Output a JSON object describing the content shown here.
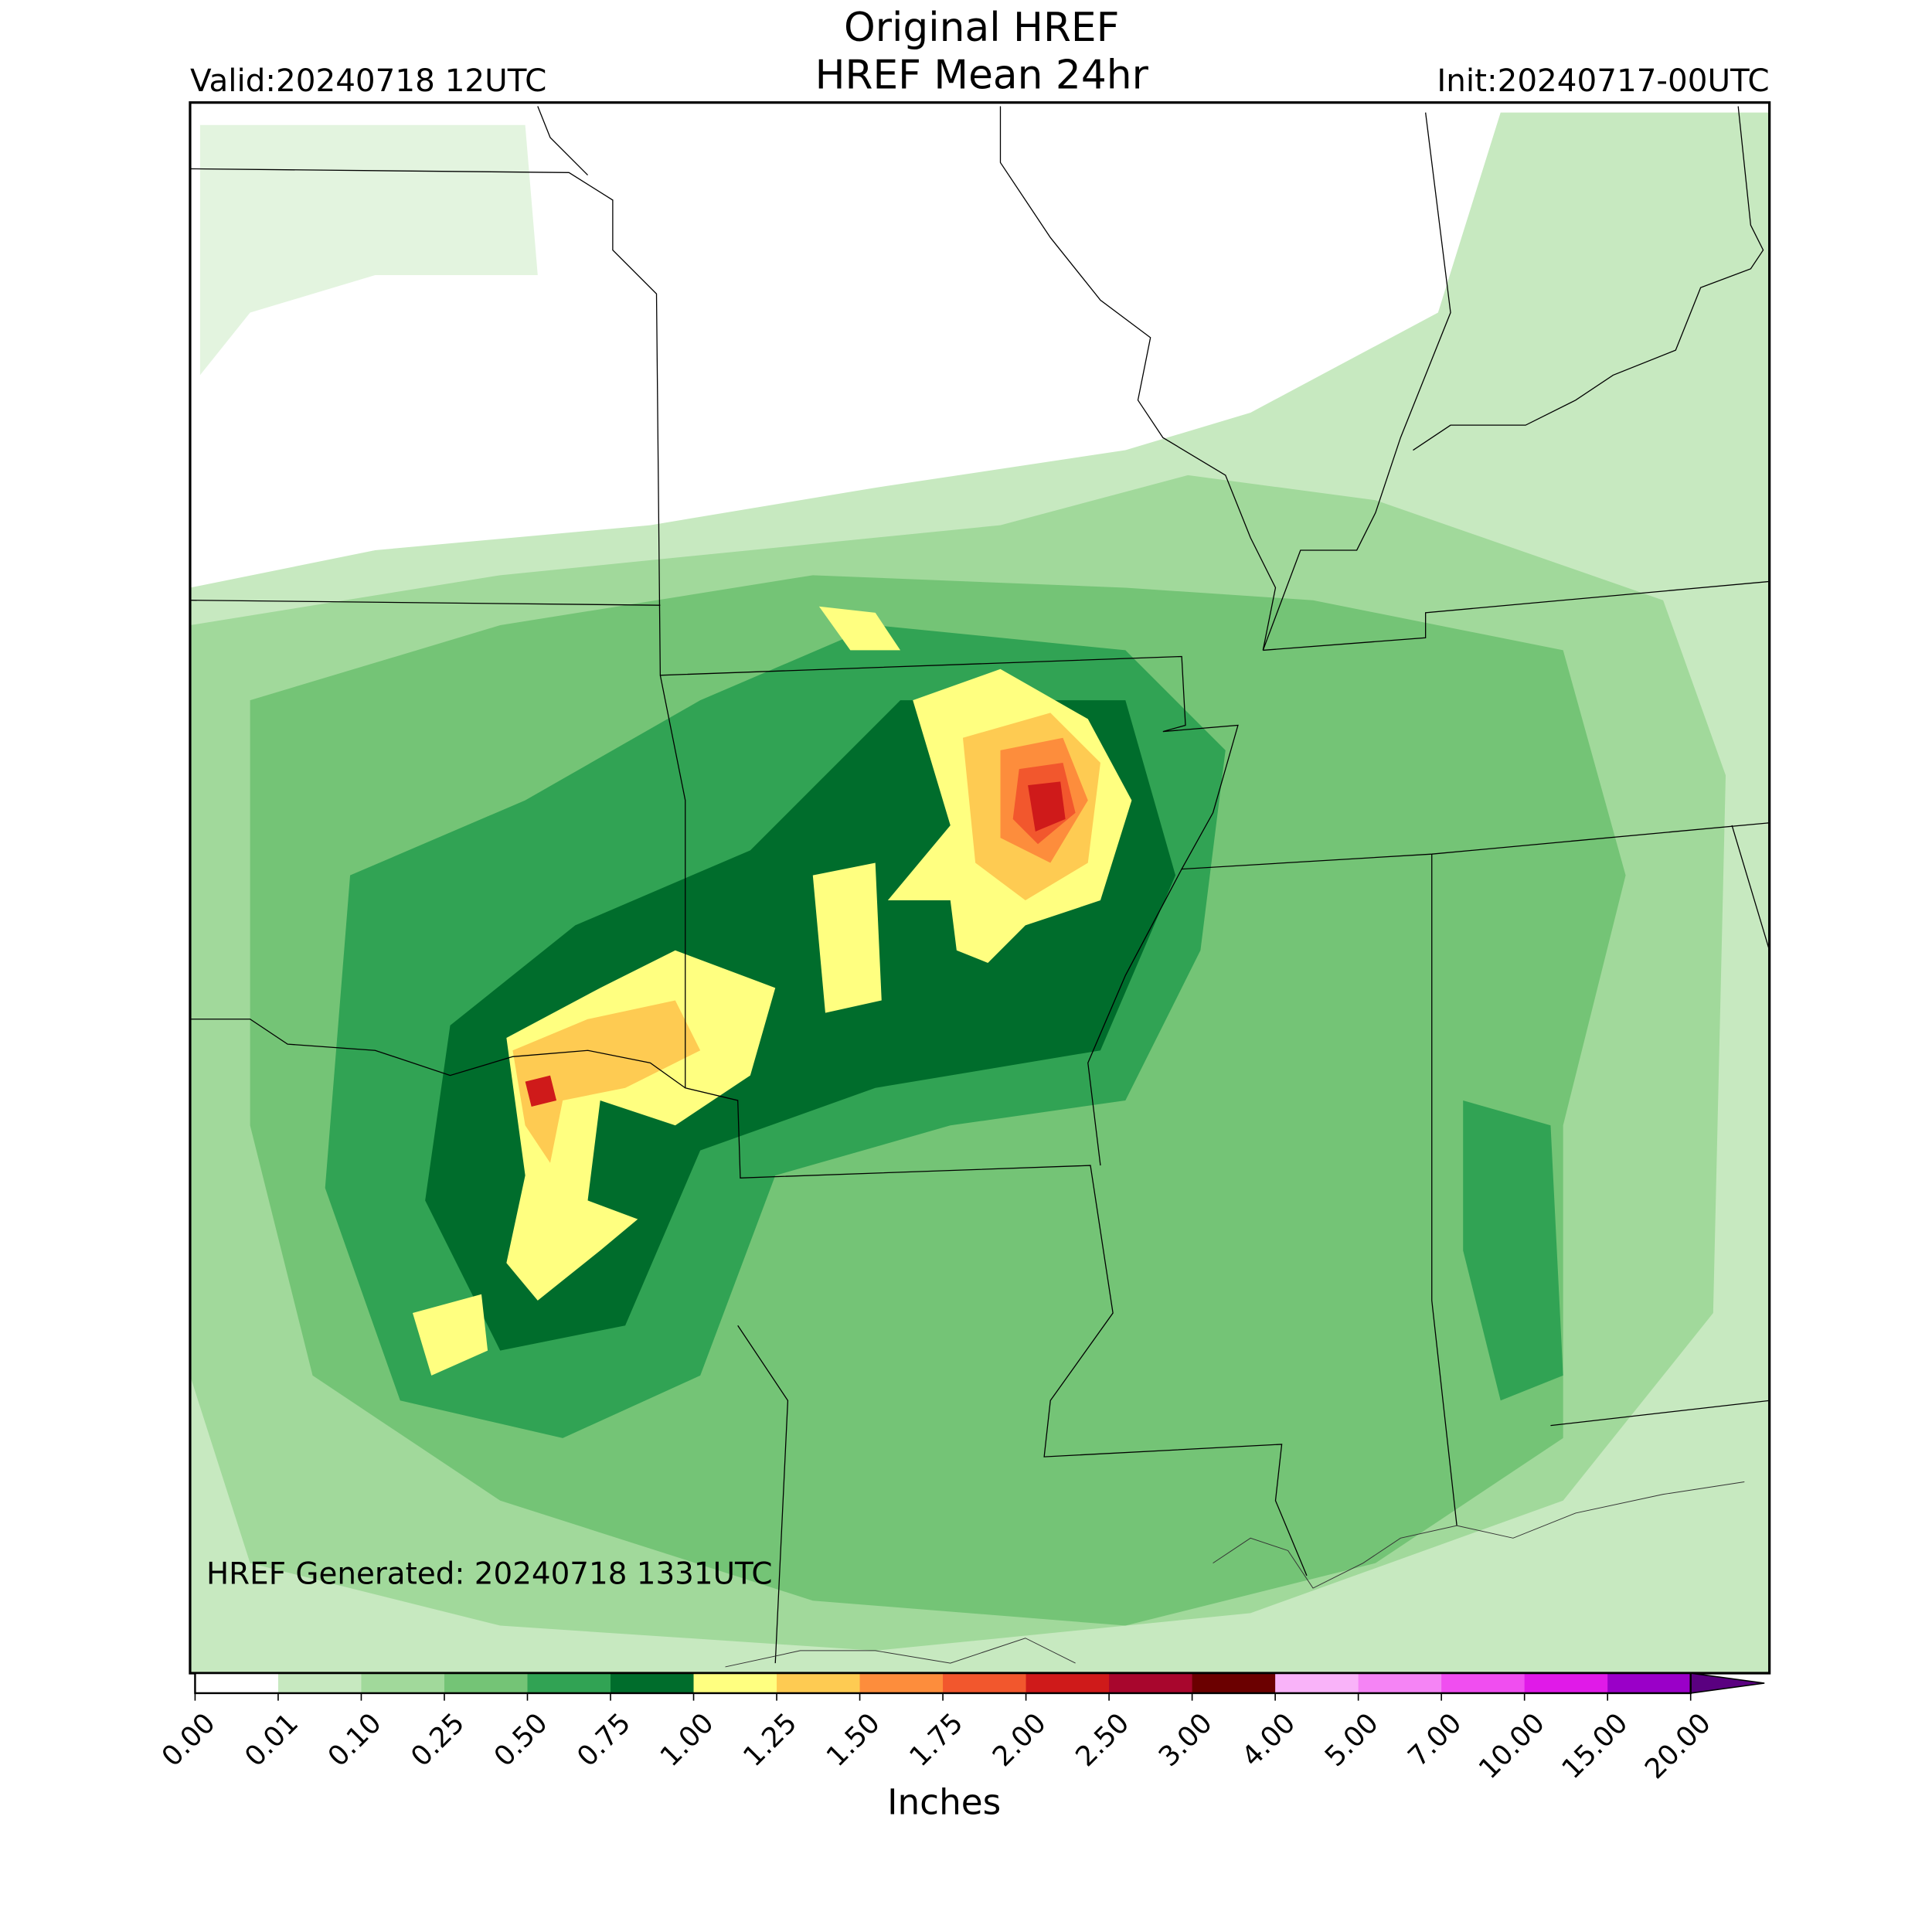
{
  "header": {
    "title": "Original HREF",
    "subtitle": "HREF Mean 24hr",
    "valid": "Valid:20240718 12UTC",
    "init": "Init:20240717-00UTC"
  },
  "map": {
    "annotation": "HREF Generated: 20240718 1331UTC"
  },
  "colorbar": {
    "label": "Inches",
    "ticks": [
      {
        "value": 0,
        "label": "0.00"
      },
      {
        "value": 0.01,
        "label": "0.01"
      },
      {
        "value": 0.1,
        "label": "0.10"
      },
      {
        "value": 0.25,
        "label": "0.25"
      },
      {
        "value": 0.5,
        "label": "0.50"
      },
      {
        "value": 0.75,
        "label": "0.75"
      },
      {
        "value": 1,
        "label": "1.00"
      },
      {
        "value": 1.25,
        "label": "1.25"
      },
      {
        "value": 1.5,
        "label": "1.50"
      },
      {
        "value": 1.75,
        "label": "1.75"
      },
      {
        "value": 2,
        "label": "2.00"
      },
      {
        "value": 2.5,
        "label": "2.50"
      },
      {
        "value": 3,
        "label": "3.00"
      },
      {
        "value": 4,
        "label": "4.00"
      },
      {
        "value": 5,
        "label": "5.00"
      },
      {
        "value": 7,
        "label": "7.00"
      },
      {
        "value": 10,
        "label": "10.00"
      },
      {
        "value": 15,
        "label": "15.00"
      },
      {
        "value": 20,
        "label": "20.00"
      }
    ],
    "colors": [
      "#ffffff",
      "#c7e9c0",
      "#a1d99b",
      "#74c476",
      "#31a354",
      "#006d2c",
      "#ffff80",
      "#fecb52",
      "#fd8d3c",
      "#f2572d",
      "#cf1a1a",
      "#a8062d",
      "#6b0000",
      "#f9b3f9",
      "#f584f5",
      "#f04ef0",
      "#e01ae8",
      "#9a00c8"
    ],
    "extend_color": "#5a0080"
  }
}
